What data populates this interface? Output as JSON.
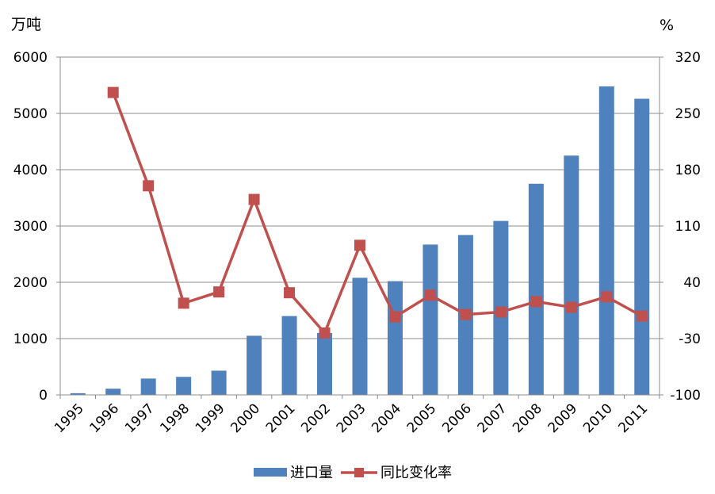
{
  "chart_data": {
    "type": "bar+line",
    "title": "",
    "y_left_unit": "万吨",
    "y_right_unit": "%",
    "categories": [
      "1995",
      "1996",
      "1997",
      "1998",
      "1999",
      "2000",
      "2001",
      "2002",
      "2003",
      "2004",
      "2005",
      "2006",
      "2007",
      "2008",
      "2009",
      "2010",
      "2011"
    ],
    "ylim_left": [
      0,
      6000
    ],
    "yticks_left": [
      "0",
      "1000",
      "2000",
      "3000",
      "4000",
      "5000",
      "6000"
    ],
    "ylim_right": [
      -100,
      320
    ],
    "yticks_right": [
      "-100",
      "-30",
      "40",
      "110",
      "180",
      "250",
      "320"
    ],
    "grid": true,
    "legend_position": "bottom",
    "series": [
      {
        "name": "进口量",
        "type": "bar",
        "axis": "left",
        "color": "#4F81BD",
        "values": [
          30,
          110,
          290,
          320,
          430,
          1050,
          1400,
          1100,
          2080,
          2020,
          2670,
          2840,
          3090,
          3750,
          4250,
          5480,
          5260
        ]
      },
      {
        "name": "同比变化率",
        "type": "line",
        "axis": "right",
        "color": "#C0504D",
        "values": [
          null,
          276,
          160,
          14,
          28,
          143,
          27,
          -23,
          86,
          -3,
          24,
          0,
          3,
          16,
          9,
          22,
          -2
        ]
      }
    ]
  }
}
